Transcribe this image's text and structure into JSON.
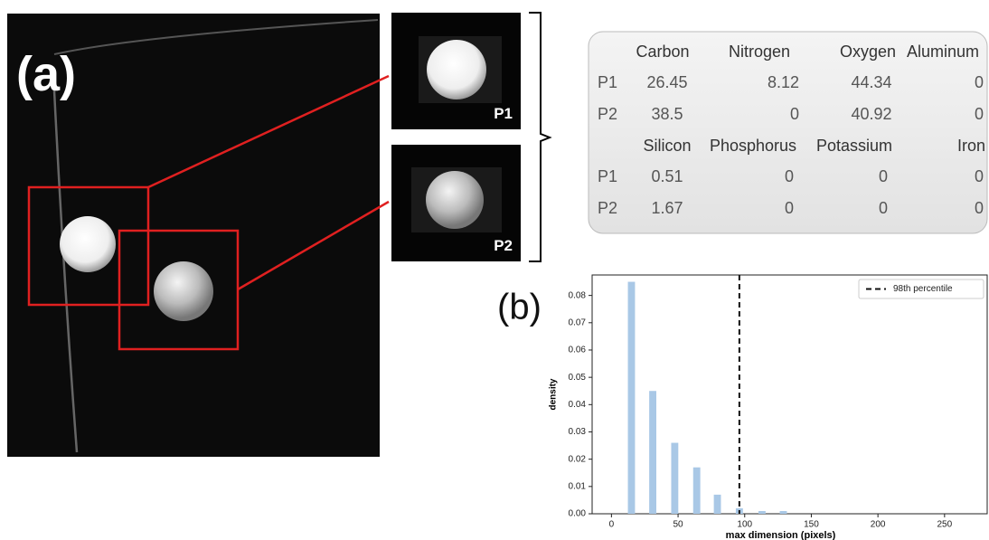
{
  "panel_a": {
    "label": "(a)",
    "insets": [
      "P1",
      "P2"
    ]
  },
  "table": {
    "blocks": [
      {
        "header": [
          "Carbon",
          "Nitrogen",
          "Oxygen",
          "Aluminum"
        ],
        "rows": [
          [
            "P1",
            26.45,
            8.12,
            44.34,
            0
          ],
          [
            "P2",
            38.5,
            0,
            40.92,
            0
          ]
        ]
      },
      {
        "header": [
          "Silicon",
          "Phosphorus",
          "Potassium",
          "Iron"
        ],
        "rows": [
          [
            "P1",
            0.51,
            0,
            0,
            0
          ],
          [
            "P2",
            1.67,
            0,
            0,
            0
          ]
        ]
      }
    ]
  },
  "panel_b_label": "(b)",
  "chart_data": {
    "type": "bar",
    "x": [
      15,
      31,
      47.5,
      64,
      79.5,
      96,
      113,
      129
    ],
    "values": [
      0.085,
      0.045,
      0.026,
      0.017,
      0.007,
      0.002,
      0.001,
      0.001
    ],
    "color": "#a9c8e6",
    "xlim": [
      -14.5,
      282
    ],
    "ylim": [
      0,
      0.0875
    ],
    "xticks": [
      0,
      50,
      100,
      150,
      200,
      250
    ],
    "yticks": [
      {
        "value": 0,
        "label": "0.00"
      },
      {
        "value": 0.01,
        "label": "0.01"
      },
      {
        "value": 0.02,
        "label": "0.02"
      },
      {
        "value": 0.03,
        "label": "0.03"
      },
      {
        "value": 0.04,
        "label": "0.04"
      },
      {
        "value": 0.05,
        "label": "0.05"
      },
      {
        "value": 0.06,
        "label": "0.06"
      },
      {
        "value": 0.07,
        "label": "0.07"
      },
      {
        "value": 0.08,
        "label": "0.08"
      }
    ],
    "xlabel": "max dimension (pixels)",
    "ylabel": "density",
    "reference_line": {
      "x": 96,
      "name": "98th percentile"
    },
    "legend": "upper right"
  }
}
